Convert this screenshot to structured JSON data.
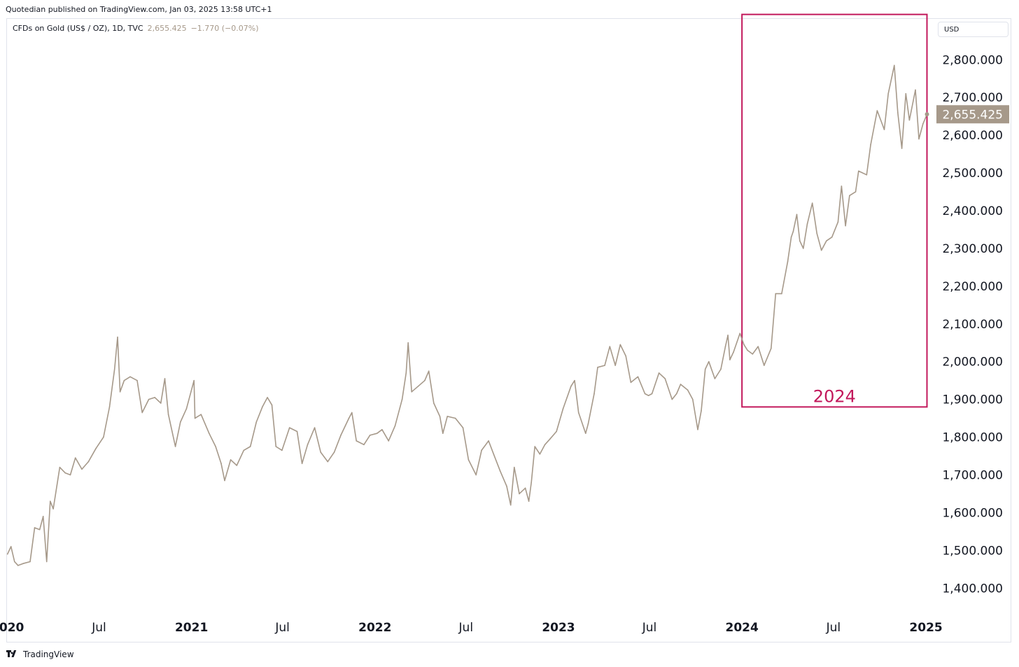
{
  "header": {
    "published_text": "Quotedian published on TradingView.com, Jan 03, 2025 13:58 UTC+1"
  },
  "legend": {
    "symbol_text": "CFDs on Gold (US$ / OZ), 1D, TVC",
    "price": "2,655.425",
    "change": "−1.770 (−0.07%)"
  },
  "currency_button": "USD",
  "footer": {
    "logo_text": "TradingView",
    "icon": "tradingview-logo-icon"
  },
  "colors": {
    "line": "#a6998a",
    "annotation": "#c2185b",
    "last_price_bg": "#a6998a",
    "axis_text": "#131722"
  },
  "chart_data": {
    "type": "line",
    "title": "",
    "xlabel": "",
    "ylabel": "",
    "ylim": [
      1330,
      2910
    ],
    "xlim": [
      "2019-12-31",
      "2025-01-19"
    ],
    "y_ticks": [
      1400,
      1500,
      1600,
      1700,
      1800,
      1900,
      2000,
      2100,
      2200,
      2300,
      2400,
      2500,
      2600,
      2700,
      2800
    ],
    "y_tick_labels": [
      "1,400.000",
      "1,500.000",
      "1,600.000",
      "1,700.000",
      "1,800.000",
      "1,900.000",
      "2,000.000",
      "2,100.000",
      "2,200.000",
      "2,300.000",
      "2,400.000",
      "2,500.000",
      "2,600.000",
      "2,700.000",
      "2,800.000"
    ],
    "x_ticks": [
      {
        "label": "2020",
        "date": "2020-01-01",
        "bold": true
      },
      {
        "label": "Jul",
        "date": "2020-07-01",
        "bold": false
      },
      {
        "label": "2021",
        "date": "2021-01-01",
        "bold": true
      },
      {
        "label": "Jul",
        "date": "2021-07-01",
        "bold": false
      },
      {
        "label": "2022",
        "date": "2022-01-01",
        "bold": true
      },
      {
        "label": "Jul",
        "date": "2022-07-01",
        "bold": false
      },
      {
        "label": "2023",
        "date": "2023-01-01",
        "bold": true
      },
      {
        "label": "Jul",
        "date": "2023-07-01",
        "bold": false
      },
      {
        "label": "2024",
        "date": "2024-01-01",
        "bold": true
      },
      {
        "label": "Jul",
        "date": "2024-07-01",
        "bold": false
      },
      {
        "label": "2025",
        "date": "2025-01-01",
        "bold": true
      }
    ],
    "last_price": 2655.425,
    "last_price_label": "2,655.425",
    "grid": false,
    "annotation": {
      "label": "2024",
      "x_range": [
        "2024-01-01",
        "2025-01-03"
      ],
      "y_range": [
        1880,
        2920
      ]
    },
    "series": [
      {
        "values": [
          {
            "x": "2020-01-01",
            "y": 1490
          },
          {
            "x": "2020-01-08",
            "y": 1510
          },
          {
            "x": "2020-01-15",
            "y": 1470
          },
          {
            "x": "2020-01-22",
            "y": 1460
          },
          {
            "x": "2020-02-01",
            "y": 1465
          },
          {
            "x": "2020-02-15",
            "y": 1470
          },
          {
            "x": "2020-02-24",
            "y": 1560
          },
          {
            "x": "2020-03-05",
            "y": 1555
          },
          {
            "x": "2020-03-12",
            "y": 1590
          },
          {
            "x": "2020-03-19",
            "y": 1470
          },
          {
            "x": "2020-03-26",
            "y": 1630
          },
          {
            "x": "2020-04-01",
            "y": 1610
          },
          {
            "x": "2020-04-14",
            "y": 1720
          },
          {
            "x": "2020-04-25",
            "y": 1705
          },
          {
            "x": "2020-05-05",
            "y": 1700
          },
          {
            "x": "2020-05-15",
            "y": 1745
          },
          {
            "x": "2020-05-28",
            "y": 1715
          },
          {
            "x": "2020-06-10",
            "y": 1735
          },
          {
            "x": "2020-06-25",
            "y": 1770
          },
          {
            "x": "2020-07-10",
            "y": 1800
          },
          {
            "x": "2020-07-22",
            "y": 1880
          },
          {
            "x": "2020-08-01",
            "y": 1980
          },
          {
            "x": "2020-08-07",
            "y": 2065
          },
          {
            "x": "2020-08-12",
            "y": 1920
          },
          {
            "x": "2020-08-20",
            "y": 1950
          },
          {
            "x": "2020-09-01",
            "y": 1960
          },
          {
            "x": "2020-09-15",
            "y": 1950
          },
          {
            "x": "2020-09-25",
            "y": 1865
          },
          {
            "x": "2020-10-08",
            "y": 1900
          },
          {
            "x": "2020-10-20",
            "y": 1905
          },
          {
            "x": "2020-11-01",
            "y": 1890
          },
          {
            "x": "2020-11-09",
            "y": 1955
          },
          {
            "x": "2020-11-16",
            "y": 1860
          },
          {
            "x": "2020-11-30",
            "y": 1775
          },
          {
            "x": "2020-12-10",
            "y": 1840
          },
          {
            "x": "2020-12-22",
            "y": 1875
          },
          {
            "x": "2021-01-06",
            "y": 1950
          },
          {
            "x": "2021-01-08",
            "y": 1850
          },
          {
            "x": "2021-01-20",
            "y": 1860
          },
          {
            "x": "2021-02-05",
            "y": 1810
          },
          {
            "x": "2021-02-18",
            "y": 1775
          },
          {
            "x": "2021-03-01",
            "y": 1730
          },
          {
            "x": "2021-03-08",
            "y": 1685
          },
          {
            "x": "2021-03-20",
            "y": 1740
          },
          {
            "x": "2021-04-01",
            "y": 1725
          },
          {
            "x": "2021-04-15",
            "y": 1765
          },
          {
            "x": "2021-04-28",
            "y": 1775
          },
          {
            "x": "2021-05-10",
            "y": 1840
          },
          {
            "x": "2021-05-22",
            "y": 1880
          },
          {
            "x": "2021-06-01",
            "y": 1905
          },
          {
            "x": "2021-06-10",
            "y": 1885
          },
          {
            "x": "2021-06-18",
            "y": 1775
          },
          {
            "x": "2021-06-30",
            "y": 1765
          },
          {
            "x": "2021-07-15",
            "y": 1825
          },
          {
            "x": "2021-07-30",
            "y": 1815
          },
          {
            "x": "2021-08-09",
            "y": 1730
          },
          {
            "x": "2021-08-20",
            "y": 1780
          },
          {
            "x": "2021-09-03",
            "y": 1825
          },
          {
            "x": "2021-09-15",
            "y": 1760
          },
          {
            "x": "2021-09-29",
            "y": 1735
          },
          {
            "x": "2021-10-12",
            "y": 1760
          },
          {
            "x": "2021-10-25",
            "y": 1805
          },
          {
            "x": "2021-11-10",
            "y": 1850
          },
          {
            "x": "2021-11-16",
            "y": 1865
          },
          {
            "x": "2021-11-25",
            "y": 1790
          },
          {
            "x": "2021-12-10",
            "y": 1780
          },
          {
            "x": "2021-12-22",
            "y": 1805
          },
          {
            "x": "2022-01-05",
            "y": 1810
          },
          {
            "x": "2022-01-15",
            "y": 1820
          },
          {
            "x": "2022-01-28",
            "y": 1790
          },
          {
            "x": "2022-02-10",
            "y": 1830
          },
          {
            "x": "2022-02-24",
            "y": 1900
          },
          {
            "x": "2022-03-04",
            "y": 1970
          },
          {
            "x": "2022-03-08",
            "y": 2050
          },
          {
            "x": "2022-03-15",
            "y": 1920
          },
          {
            "x": "2022-03-28",
            "y": 1935
          },
          {
            "x": "2022-04-10",
            "y": 1950
          },
          {
            "x": "2022-04-18",
            "y": 1975
          },
          {
            "x": "2022-04-28",
            "y": 1890
          },
          {
            "x": "2022-05-10",
            "y": 1855
          },
          {
            "x": "2022-05-16",
            "y": 1810
          },
          {
            "x": "2022-05-25",
            "y": 1855
          },
          {
            "x": "2022-06-10",
            "y": 1850
          },
          {
            "x": "2022-06-25",
            "y": 1825
          },
          {
            "x": "2022-07-06",
            "y": 1740
          },
          {
            "x": "2022-07-21",
            "y": 1700
          },
          {
            "x": "2022-08-01",
            "y": 1765
          },
          {
            "x": "2022-08-15",
            "y": 1790
          },
          {
            "x": "2022-08-25",
            "y": 1755
          },
          {
            "x": "2022-09-07",
            "y": 1710
          },
          {
            "x": "2022-09-20",
            "y": 1670
          },
          {
            "x": "2022-09-28",
            "y": 1620
          },
          {
            "x": "2022-10-05",
            "y": 1720
          },
          {
            "x": "2022-10-15",
            "y": 1650
          },
          {
            "x": "2022-10-27",
            "y": 1665
          },
          {
            "x": "2022-11-03",
            "y": 1630
          },
          {
            "x": "2022-11-08",
            "y": 1680
          },
          {
            "x": "2022-11-15",
            "y": 1775
          },
          {
            "x": "2022-11-25",
            "y": 1755
          },
          {
            "x": "2022-12-05",
            "y": 1780
          },
          {
            "x": "2022-12-15",
            "y": 1795
          },
          {
            "x": "2022-12-28",
            "y": 1815
          },
          {
            "x": "2023-01-10",
            "y": 1875
          },
          {
            "x": "2023-01-26",
            "y": 1935
          },
          {
            "x": "2023-02-02",
            "y": 1950
          },
          {
            "x": "2023-02-10",
            "y": 1865
          },
          {
            "x": "2023-02-24",
            "y": 1810
          },
          {
            "x": "2023-03-01",
            "y": 1835
          },
          {
            "x": "2023-03-13",
            "y": 1915
          },
          {
            "x": "2023-03-20",
            "y": 1985
          },
          {
            "x": "2023-04-03",
            "y": 1990
          },
          {
            "x": "2023-04-13",
            "y": 2040
          },
          {
            "x": "2023-04-24",
            "y": 1990
          },
          {
            "x": "2023-05-04",
            "y": 2045
          },
          {
            "x": "2023-05-15",
            "y": 2015
          },
          {
            "x": "2023-05-25",
            "y": 1945
          },
          {
            "x": "2023-06-08",
            "y": 1960
          },
          {
            "x": "2023-06-22",
            "y": 1915
          },
          {
            "x": "2023-06-29",
            "y": 1910
          },
          {
            "x": "2023-07-06",
            "y": 1915
          },
          {
            "x": "2023-07-20",
            "y": 1970
          },
          {
            "x": "2023-08-01",
            "y": 1955
          },
          {
            "x": "2023-08-15",
            "y": 1900
          },
          {
            "x": "2023-08-24",
            "y": 1915
          },
          {
            "x": "2023-09-01",
            "y": 1940
          },
          {
            "x": "2023-09-15",
            "y": 1925
          },
          {
            "x": "2023-09-25",
            "y": 1900
          },
          {
            "x": "2023-10-05",
            "y": 1820
          },
          {
            "x": "2023-10-12",
            "y": 1870
          },
          {
            "x": "2023-10-20",
            "y": 1980
          },
          {
            "x": "2023-10-27",
            "y": 2000
          },
          {
            "x": "2023-11-08",
            "y": 1955
          },
          {
            "x": "2023-11-20",
            "y": 1980
          },
          {
            "x": "2023-11-29",
            "y": 2040
          },
          {
            "x": "2023-12-04",
            "y": 2070
          },
          {
            "x": "2023-12-08",
            "y": 2005
          },
          {
            "x": "2023-12-15",
            "y": 2025
          },
          {
            "x": "2023-12-28",
            "y": 2075
          },
          {
            "x": "2024-01-05",
            "y": 2045
          },
          {
            "x": "2024-01-12",
            "y": 2030
          },
          {
            "x": "2024-01-22",
            "y": 2020
          },
          {
            "x": "2024-02-02",
            "y": 2040
          },
          {
            "x": "2024-02-14",
            "y": 1990
          },
          {
            "x": "2024-02-28",
            "y": 2035
          },
          {
            "x": "2024-03-08",
            "y": 2180
          },
          {
            "x": "2024-03-20",
            "y": 2180
          },
          {
            "x": "2024-04-01",
            "y": 2265
          },
          {
            "x": "2024-04-08",
            "y": 2330
          },
          {
            "x": "2024-04-12",
            "y": 2345
          },
          {
            "x": "2024-04-19",
            "y": 2390
          },
          {
            "x": "2024-04-25",
            "y": 2320
          },
          {
            "x": "2024-05-02",
            "y": 2300
          },
          {
            "x": "2024-05-10",
            "y": 2365
          },
          {
            "x": "2024-05-20",
            "y": 2420
          },
          {
            "x": "2024-05-29",
            "y": 2340
          },
          {
            "x": "2024-06-07",
            "y": 2295
          },
          {
            "x": "2024-06-17",
            "y": 2320
          },
          {
            "x": "2024-06-28",
            "y": 2330
          },
          {
            "x": "2024-07-10",
            "y": 2370
          },
          {
            "x": "2024-07-17",
            "y": 2465
          },
          {
            "x": "2024-07-25",
            "y": 2360
          },
          {
            "x": "2024-08-02",
            "y": 2440
          },
          {
            "x": "2024-08-14",
            "y": 2450
          },
          {
            "x": "2024-08-20",
            "y": 2505
          },
          {
            "x": "2024-09-05",
            "y": 2495
          },
          {
            "x": "2024-09-13",
            "y": 2575
          },
          {
            "x": "2024-09-26",
            "y": 2665
          },
          {
            "x": "2024-10-10",
            "y": 2615
          },
          {
            "x": "2024-10-18",
            "y": 2710
          },
          {
            "x": "2024-10-30",
            "y": 2785
          },
          {
            "x": "2024-11-06",
            "y": 2660
          },
          {
            "x": "2024-11-14",
            "y": 2565
          },
          {
            "x": "2024-11-22",
            "y": 2710
          },
          {
            "x": "2024-11-29",
            "y": 2640
          },
          {
            "x": "2024-12-11",
            "y": 2720
          },
          {
            "x": "2024-12-18",
            "y": 2590
          },
          {
            "x": "2024-12-26",
            "y": 2630
          },
          {
            "x": "2025-01-03",
            "y": 2655.425
          }
        ]
      }
    ]
  }
}
